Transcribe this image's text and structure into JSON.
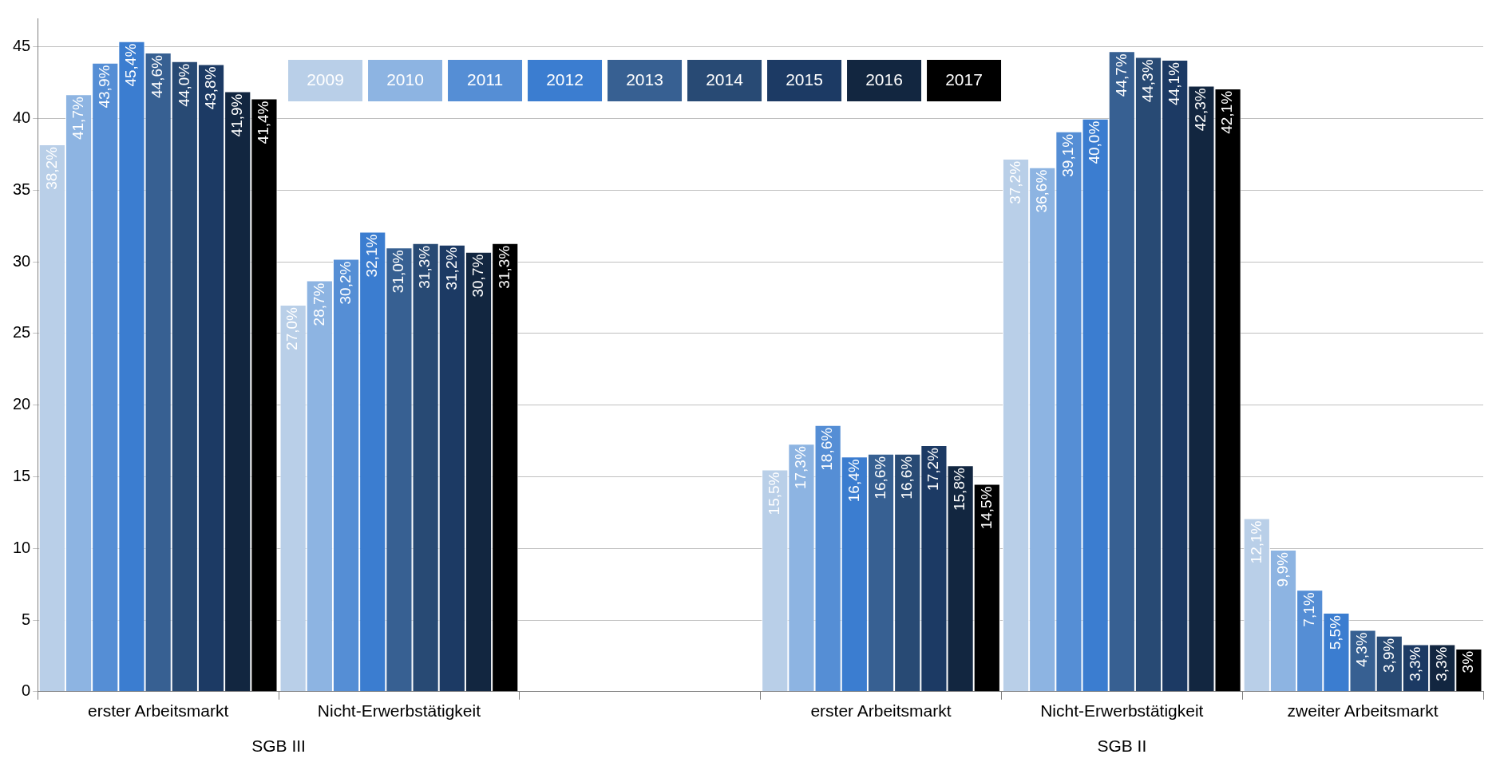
{
  "chart_data": {
    "type": "bar",
    "categories": [
      "erster Arbeitsmarkt",
      "Nicht-Erwerbstätigkeit",
      null,
      "erster Arbeitsmarkt",
      "Nicht-Erwerbstätigkeit",
      "zweiter Arbeitsmarkt"
    ],
    "series": [
      {
        "name": "2009",
        "color": "#b9cfe8",
        "values": [
          38.2,
          27.0,
          null,
          15.5,
          37.2,
          12.1
        ],
        "value_labels": [
          "38,2%",
          "27,0%",
          null,
          "15,5%",
          "37,2%",
          "12,1%"
        ]
      },
      {
        "name": "2010",
        "color": "#8db4e2",
        "values": [
          41.7,
          28.7,
          null,
          17.3,
          36.6,
          9.9
        ],
        "value_labels": [
          "41,7%",
          "28,7%",
          null,
          "17,3%",
          "36,6%",
          "9,9%"
        ]
      },
      {
        "name": "2011",
        "color": "#558ed5",
        "values": [
          43.9,
          30.2,
          null,
          18.6,
          39.1,
          7.1
        ],
        "value_labels": [
          "43,9%",
          "30,2%",
          null,
          "18,6%",
          "39,1%",
          "7,1%"
        ]
      },
      {
        "name": "2012",
        "color": "#3b7dd0",
        "values": [
          45.4,
          32.1,
          null,
          16.4,
          40.0,
          5.5
        ],
        "value_labels": [
          "45,4%",
          "32,1%",
          null,
          "16,4%",
          "40,0%",
          "5,5%"
        ]
      },
      {
        "name": "2013",
        "color": "#376092",
        "values": [
          44.6,
          31.0,
          null,
          16.6,
          44.7,
          4.3
        ],
        "value_labels": [
          "44,6%",
          "31,0%",
          null,
          "16,6%",
          "44,7%",
          "4,3%"
        ]
      },
      {
        "name": "2014",
        "color": "#284a74",
        "values": [
          44.0,
          31.3,
          null,
          16.6,
          44.3,
          3.9
        ],
        "value_labels": [
          "44,0%",
          "31,3%",
          null,
          "16,6%",
          "44,3%",
          "3,9%"
        ]
      },
      {
        "name": "2015",
        "color": "#1c3a64",
        "values": [
          43.8,
          31.2,
          null,
          17.2,
          44.1,
          3.3
        ],
        "value_labels": [
          "43,8%",
          "31,2%",
          null,
          "17,2%",
          "44,1%",
          "3,3%"
        ]
      },
      {
        "name": "2016",
        "color": "#122640",
        "values": [
          41.9,
          30.7,
          null,
          15.8,
          42.3,
          3.3
        ],
        "value_labels": [
          "41,9%",
          "30,7%",
          null,
          "15,8%",
          "42,3%",
          "3,3%"
        ]
      },
      {
        "name": "2017",
        "color": "#000000",
        "values": [
          41.4,
          31.3,
          null,
          14.5,
          42.1,
          3
        ],
        "value_labels": [
          "41,4%",
          "31,3%",
          null,
          "14,5%",
          "42,1%",
          "3%"
        ]
      }
    ],
    "ylim": [
      0,
      47
    ],
    "yticks": [
      0,
      5,
      10,
      15,
      20,
      25,
      30,
      35,
      40,
      45
    ],
    "grid": "y",
    "legend": "top",
    "annotations": [
      "SGB III",
      "SGB II"
    ]
  }
}
